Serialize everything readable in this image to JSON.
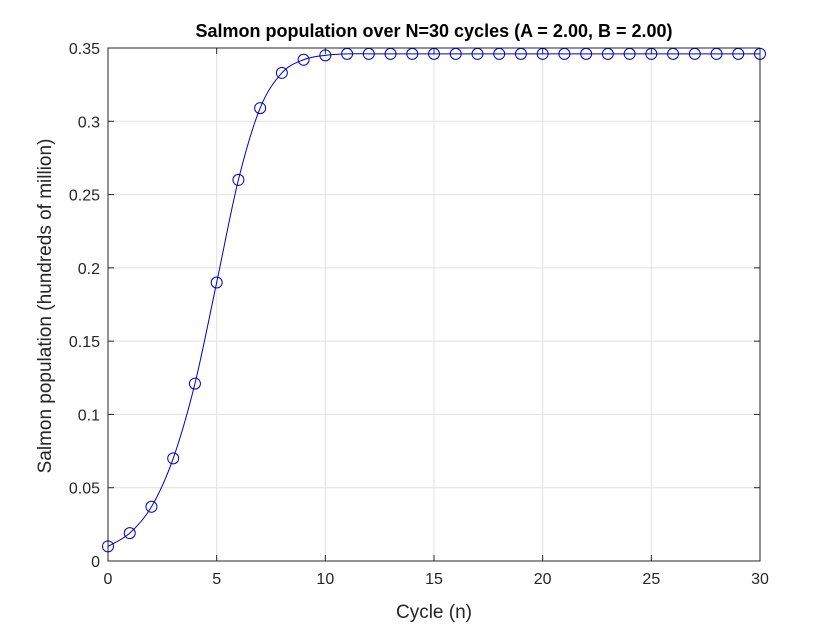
{
  "chart_data": {
    "type": "line",
    "title": "Salmon population over N=30 cycles (A = 2.00, B = 2.00)",
    "xlabel": "Cycle (n)",
    "ylabel": "Salmon population (hundreds of million)",
    "xlim": [
      0,
      30
    ],
    "ylim": [
      0,
      0.35
    ],
    "x_ticks": [
      0,
      5,
      10,
      15,
      20,
      25,
      30
    ],
    "x_tick_labels": [
      "0",
      "5",
      "10",
      "15",
      "20",
      "25",
      "30"
    ],
    "y_ticks": [
      0,
      0.05,
      0.1,
      0.15,
      0.2,
      0.25,
      0.3,
      0.35
    ],
    "y_tick_labels": [
      "0",
      "0.05",
      "0.1",
      "0.15",
      "0.2",
      "0.25",
      "0.3",
      "0.35"
    ],
    "grid": true,
    "marker": "circle",
    "color": "#0000cc",
    "series": [
      {
        "x": [
          0,
          1,
          2,
          3,
          4,
          5,
          6,
          7,
          8,
          9,
          10,
          11,
          12,
          13,
          14,
          15,
          16,
          17,
          18,
          19,
          20,
          21,
          22,
          23,
          24,
          25,
          26,
          27,
          28,
          29,
          30
        ],
        "values": [
          0.01,
          0.019,
          0.037,
          0.07,
          0.121,
          0.19,
          0.26,
          0.309,
          0.333,
          0.342,
          0.345,
          0.346,
          0.346,
          0.346,
          0.346,
          0.346,
          0.346,
          0.346,
          0.346,
          0.346,
          0.346,
          0.346,
          0.346,
          0.346,
          0.346,
          0.346,
          0.346,
          0.346,
          0.346,
          0.346,
          0.346
        ]
      }
    ]
  }
}
